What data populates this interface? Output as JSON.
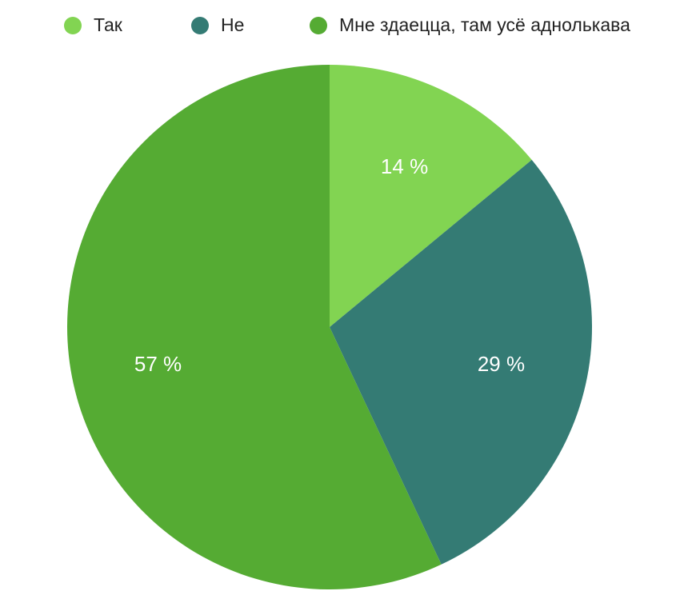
{
  "chart_data": {
    "type": "pie",
    "categories": [
      "Так",
      "Не",
      "Мне здаецца, там усё аднолькава"
    ],
    "values": [
      14,
      29,
      57
    ],
    "value_labels": [
      "14 %",
      "29 %",
      "57 %"
    ],
    "colors": [
      "#82d452",
      "#347b74",
      "#55ab33"
    ]
  }
}
